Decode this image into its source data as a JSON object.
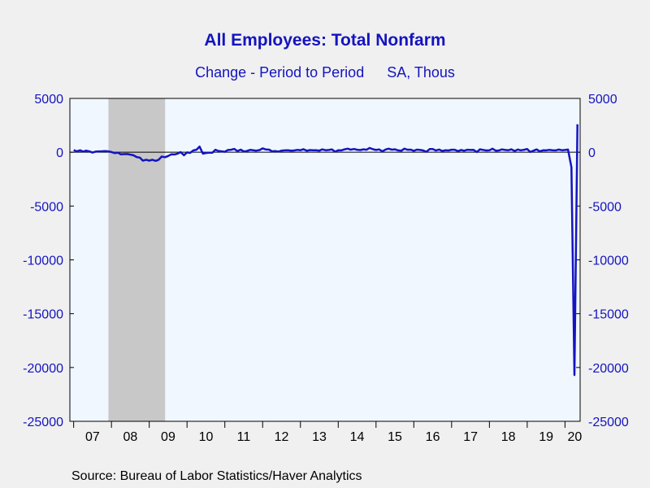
{
  "chart_data": {
    "type": "line",
    "title": "All Employees: Total Nonfarm",
    "subtitle_left": "Change - Period to Period",
    "subtitle_right": "SA, Thous",
    "source": "Source:  Bureau of Labor Statistics/Haver Analytics",
    "ylim": [
      -25000,
      5000
    ],
    "yticks": [
      5000,
      0,
      -5000,
      -10000,
      -15000,
      -20000,
      -25000
    ],
    "ytick_labels": [
      "5000",
      "0",
      "-5000",
      "-10000",
      "-15000",
      "-20000",
      "-25000"
    ],
    "xlim": [
      2006.9,
      2020.4
    ],
    "xticks": [
      2007,
      2008,
      2009,
      2010,
      2011,
      2012,
      2013,
      2014,
      2015,
      2016,
      2017,
      2018,
      2019,
      2020
    ],
    "xtick_labels": [
      "07",
      "08",
      "09",
      "10",
      "11",
      "12",
      "13",
      "14",
      "15",
      "16",
      "17",
      "18",
      "19",
      "20"
    ],
    "recession": [
      2007.92,
      2009.42
    ],
    "series": [
      {
        "color": "#1414c0",
        "points": [
          [
            2007.0,
            200
          ],
          [
            2007.08,
            80
          ],
          [
            2007.17,
            180
          ],
          [
            2007.25,
            60
          ],
          [
            2007.33,
            150
          ],
          [
            2007.42,
            70
          ],
          [
            2007.5,
            -30
          ],
          [
            2007.58,
            60
          ],
          [
            2007.67,
            80
          ],
          [
            2007.75,
            90
          ],
          [
            2007.83,
            100
          ],
          [
            2007.92,
            80
          ],
          [
            2008.0,
            20
          ],
          [
            2008.08,
            -80
          ],
          [
            2008.17,
            -40
          ],
          [
            2008.25,
            -200
          ],
          [
            2008.33,
            -180
          ],
          [
            2008.42,
            -170
          ],
          [
            2008.5,
            -220
          ],
          [
            2008.58,
            -280
          ],
          [
            2008.67,
            -450
          ],
          [
            2008.75,
            -500
          ],
          [
            2008.83,
            -780
          ],
          [
            2008.92,
            -700
          ],
          [
            2009.0,
            -780
          ],
          [
            2009.08,
            -700
          ],
          [
            2009.17,
            -800
          ],
          [
            2009.25,
            -700
          ],
          [
            2009.33,
            -400
          ],
          [
            2009.42,
            -460
          ],
          [
            2009.5,
            -350
          ],
          [
            2009.58,
            -200
          ],
          [
            2009.67,
            -210
          ],
          [
            2009.75,
            -130
          ],
          [
            2009.83,
            10
          ],
          [
            2009.92,
            -280
          ],
          [
            2010.0,
            -20
          ],
          [
            2010.08,
            -60
          ],
          [
            2010.17,
            170
          ],
          [
            2010.25,
            230
          ],
          [
            2010.33,
            530
          ],
          [
            2010.42,
            -130
          ],
          [
            2010.5,
            -70
          ],
          [
            2010.58,
            -40
          ],
          [
            2010.67,
            -50
          ],
          [
            2010.75,
            230
          ],
          [
            2010.83,
            120
          ],
          [
            2010.92,
            80
          ],
          [
            2011.0,
            40
          ],
          [
            2011.08,
            200
          ],
          [
            2011.17,
            230
          ],
          [
            2011.25,
            310
          ],
          [
            2011.33,
            100
          ],
          [
            2011.42,
            240
          ],
          [
            2011.5,
            70
          ],
          [
            2011.58,
            110
          ],
          [
            2011.67,
            220
          ],
          [
            2011.75,
            180
          ],
          [
            2011.83,
            150
          ],
          [
            2011.92,
            200
          ],
          [
            2012.0,
            360
          ],
          [
            2012.08,
            260
          ],
          [
            2012.17,
            240
          ],
          [
            2012.25,
            80
          ],
          [
            2012.33,
            110
          ],
          [
            2012.42,
            60
          ],
          [
            2012.5,
            150
          ],
          [
            2012.58,
            170
          ],
          [
            2012.67,
            180
          ],
          [
            2012.75,
            150
          ],
          [
            2012.83,
            160
          ],
          [
            2012.92,
            220
          ],
          [
            2013.0,
            190
          ],
          [
            2013.08,
            280
          ],
          [
            2013.17,
            140
          ],
          [
            2013.25,
            200
          ],
          [
            2013.33,
            180
          ],
          [
            2013.42,
            190
          ],
          [
            2013.5,
            150
          ],
          [
            2013.58,
            260
          ],
          [
            2013.67,
            190
          ],
          [
            2013.75,
            210
          ],
          [
            2013.83,
            260
          ],
          [
            2013.92,
            50
          ],
          [
            2014.0,
            190
          ],
          [
            2014.08,
            170
          ],
          [
            2014.17,
            270
          ],
          [
            2014.25,
            330
          ],
          [
            2014.33,
            240
          ],
          [
            2014.42,
            300
          ],
          [
            2014.5,
            230
          ],
          [
            2014.58,
            200
          ],
          [
            2014.67,
            270
          ],
          [
            2014.75,
            230
          ],
          [
            2014.83,
            400
          ],
          [
            2014.92,
            280
          ],
          [
            2015.0,
            210
          ],
          [
            2015.08,
            260
          ],
          [
            2015.17,
            80
          ],
          [
            2015.25,
            250
          ],
          [
            2015.33,
            330
          ],
          [
            2015.42,
            240
          ],
          [
            2015.5,
            270
          ],
          [
            2015.58,
            170
          ],
          [
            2015.67,
            140
          ],
          [
            2015.75,
            330
          ],
          [
            2015.83,
            230
          ],
          [
            2015.92,
            240
          ],
          [
            2016.0,
            130
          ],
          [
            2016.08,
            240
          ],
          [
            2016.17,
            210
          ],
          [
            2016.25,
            160
          ],
          [
            2016.33,
            40
          ],
          [
            2016.42,
            290
          ],
          [
            2016.5,
            290
          ],
          [
            2016.58,
            160
          ],
          [
            2016.67,
            250
          ],
          [
            2016.75,
            120
          ],
          [
            2016.83,
            180
          ],
          [
            2016.92,
            160
          ],
          [
            2017.0,
            230
          ],
          [
            2017.08,
            230
          ],
          [
            2017.17,
            100
          ],
          [
            2017.25,
            210
          ],
          [
            2017.33,
            140
          ],
          [
            2017.42,
            230
          ],
          [
            2017.5,
            210
          ],
          [
            2017.58,
            220
          ],
          [
            2017.67,
            20
          ],
          [
            2017.75,
            270
          ],
          [
            2017.83,
            220
          ],
          [
            2017.92,
            160
          ],
          [
            2018.0,
            180
          ],
          [
            2018.08,
            330
          ],
          [
            2018.17,
            140
          ],
          [
            2018.25,
            160
          ],
          [
            2018.33,
            260
          ],
          [
            2018.42,
            210
          ],
          [
            2018.5,
            180
          ],
          [
            2018.58,
            270
          ],
          [
            2018.67,
            120
          ],
          [
            2018.75,
            250
          ],
          [
            2018.83,
            180
          ],
          [
            2018.92,
            230
          ],
          [
            2019.0,
            300
          ],
          [
            2019.08,
            20
          ],
          [
            2019.17,
            150
          ],
          [
            2019.25,
            260
          ],
          [
            2019.33,
            80
          ],
          [
            2019.42,
            180
          ],
          [
            2019.5,
            170
          ],
          [
            2019.58,
            220
          ],
          [
            2019.67,
            190
          ],
          [
            2019.75,
            170
          ],
          [
            2019.83,
            250
          ],
          [
            2019.92,
            190
          ],
          [
            2020.0,
            210
          ],
          [
            2020.08,
            250
          ],
          [
            2020.17,
            -1400
          ],
          [
            2020.25,
            -20700
          ],
          [
            2020.33,
            2600
          ]
        ]
      }
    ]
  }
}
